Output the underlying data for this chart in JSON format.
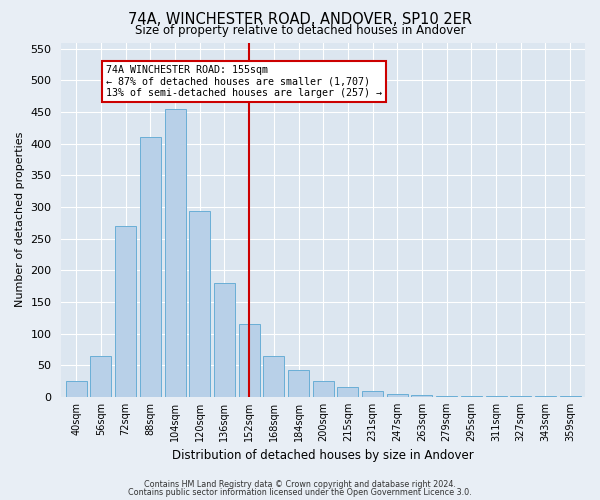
{
  "title": "74A, WINCHESTER ROAD, ANDOVER, SP10 2ER",
  "subtitle": "Size of property relative to detached houses in Andover",
  "xlabel": "Distribution of detached houses by size in Andover",
  "ylabel": "Number of detached properties",
  "bar_labels": [
    "40sqm",
    "56sqm",
    "72sqm",
    "88sqm",
    "104sqm",
    "120sqm",
    "136sqm",
    "152sqm",
    "168sqm",
    "184sqm",
    "200sqm",
    "215sqm",
    "231sqm",
    "247sqm",
    "263sqm",
    "279sqm",
    "295sqm",
    "311sqm",
    "327sqm",
    "343sqm",
    "359sqm"
  ],
  "bar_values": [
    25,
    65,
    270,
    410,
    455,
    293,
    180,
    115,
    65,
    43,
    25,
    15,
    10,
    5,
    3,
    2,
    2,
    1,
    1,
    1,
    1
  ],
  "bar_color": "#b8d0e8",
  "bar_edge_color": "#6aaed6",
  "property_line_color": "#cc0000",
  "annotation_title": "74A WINCHESTER ROAD: 155sqm",
  "annotation_line1": "← 87% of detached houses are smaller (1,707)",
  "annotation_line2": "13% of semi-detached houses are larger (257) →",
  "annotation_box_color": "#ffffff",
  "annotation_box_edge": "#cc0000",
  "ylim": [
    0,
    560
  ],
  "footer1": "Contains HM Land Registry data © Crown copyright and database right 2024.",
  "footer2": "Contains public sector information licensed under the Open Government Licence 3.0.",
  "bg_color": "#e8eef5",
  "plot_bg_color": "#dce6f0"
}
